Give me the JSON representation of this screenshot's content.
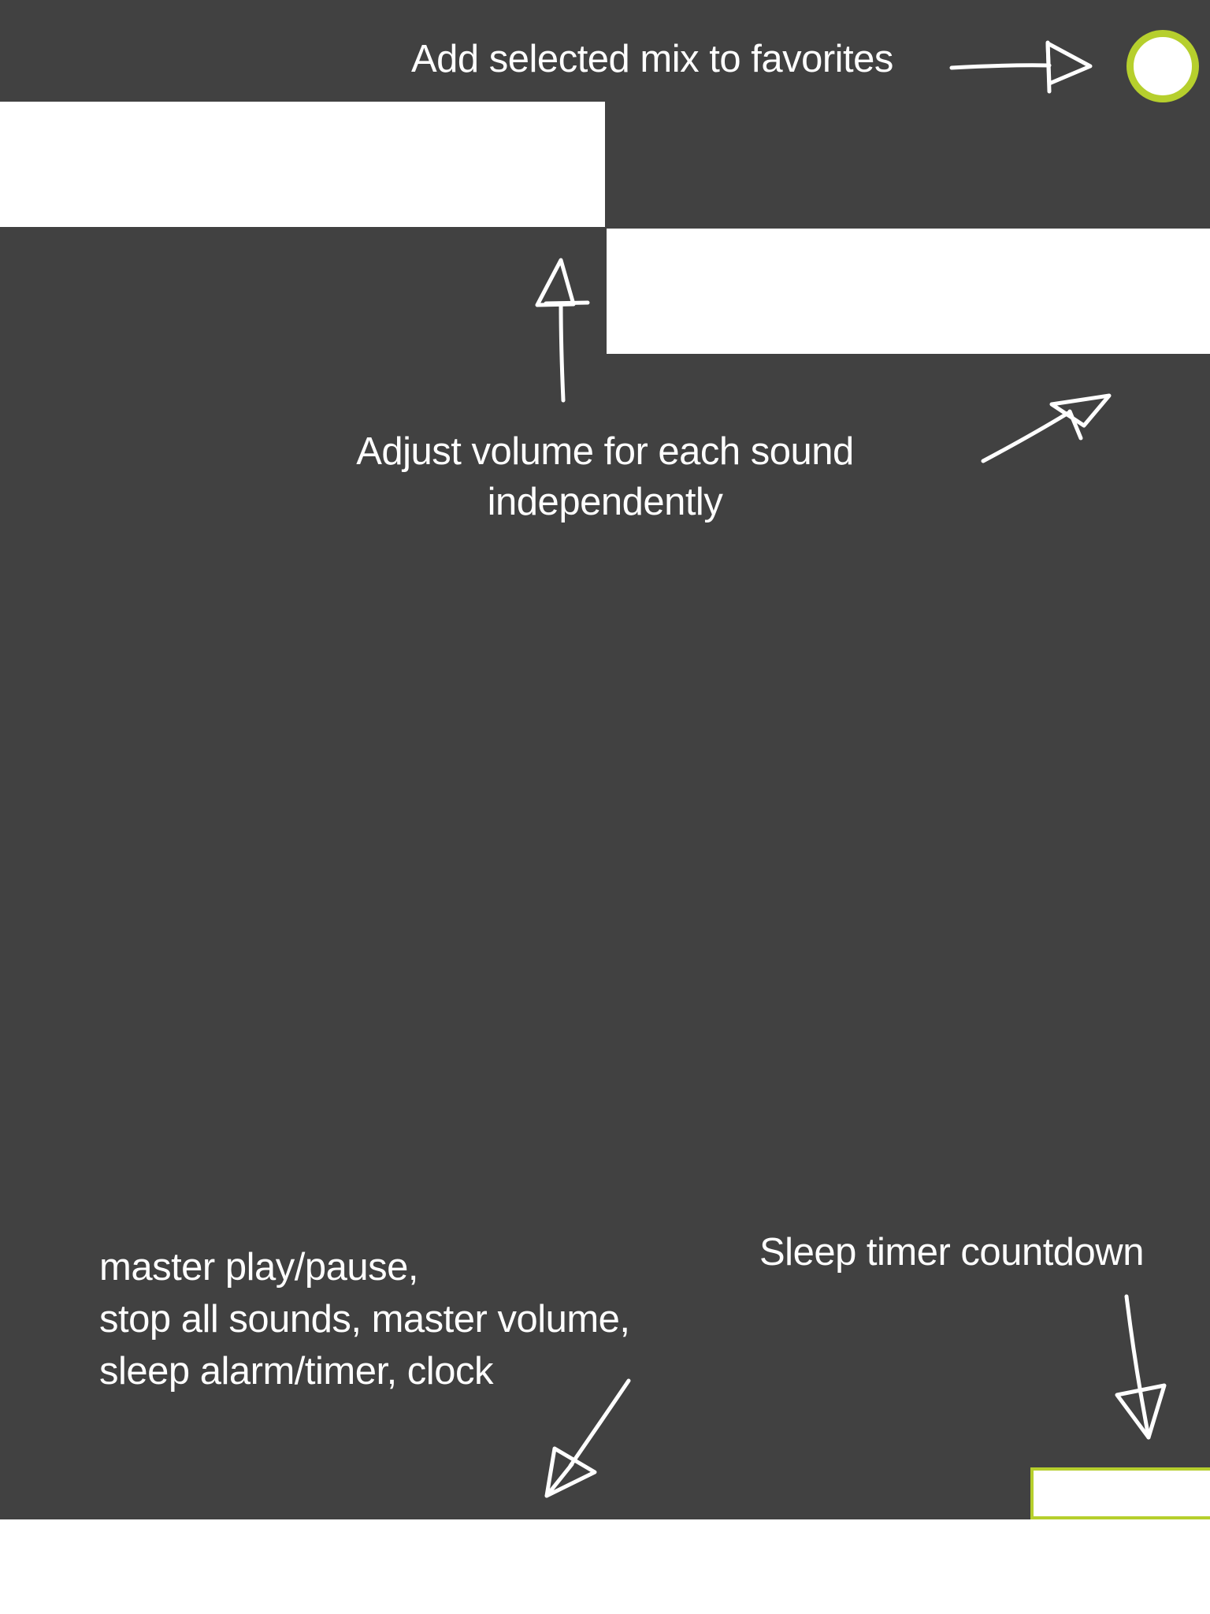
{
  "overlay": {
    "accent_color": "#b6cf2d",
    "background_color": "#414141"
  },
  "hints": {
    "favorites": "Add selected mix to favorites",
    "volume": "Adjust volume for each sound independently",
    "master_lines": [
      "master play/pause,",
      "stop all sounds, master volume,",
      "sleep alarm/timer, clock"
    ],
    "sleep_timer": "Sleep timer countdown"
  },
  "icons": {
    "favorite": "circle-favorite-icon",
    "arrows": [
      "arrow-right-icon",
      "arrow-up-icon",
      "arrow-up-right-icon",
      "arrow-down-left-icon",
      "arrow-down-icon"
    ]
  }
}
